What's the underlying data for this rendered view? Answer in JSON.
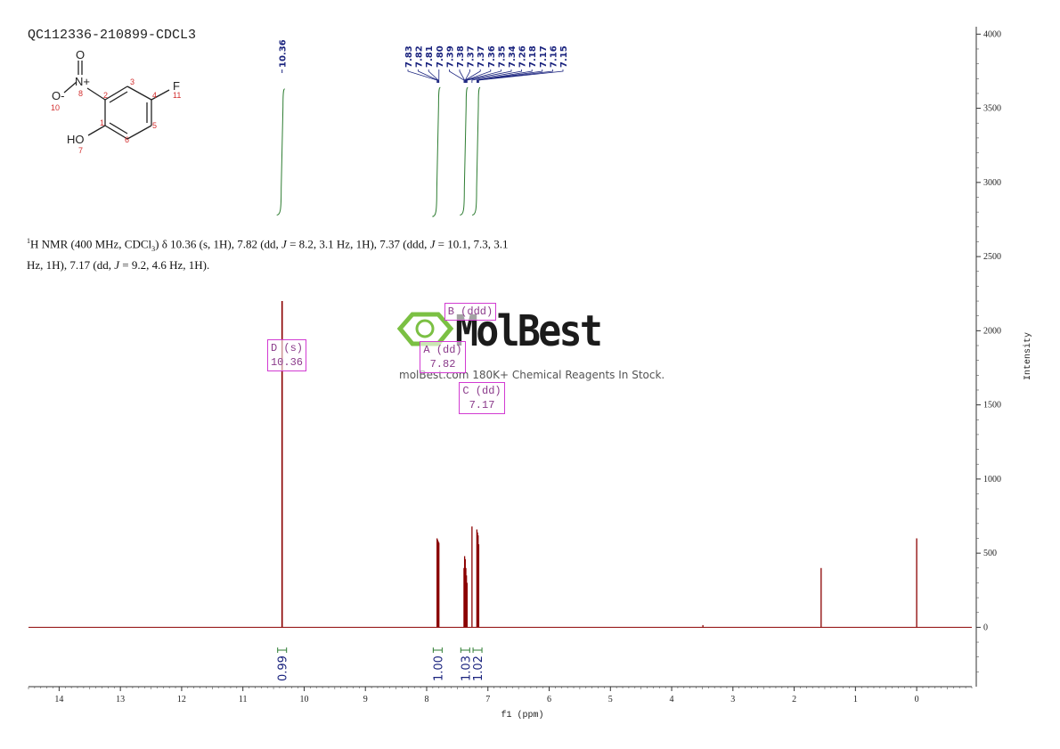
{
  "sample_id": "QC112336-210899-CDCL3",
  "nmr_description": {
    "nucleus_prefix": "1",
    "part1": "H NMR (400 MHz, CDCl",
    "sub": "3",
    "part2": ") δ 10.36 (s, 1H), 7.82 (dd, ",
    "j1": "J",
    "part3": " = 8.2, 3.1 Hz, 1H), 7.37 (ddd, ",
    "j2": "J",
    "part4": " = 10.1, 7.3, 3.1",
    "line2a": "Hz, 1H), 7.17 (dd, ",
    "j3": "J",
    "line2b": " = 9.2, 4.6 Hz, 1H)."
  },
  "watermark": {
    "title": "MolBest",
    "subtitle": "molBest.com 180K+ Chemical Reagents In Stock."
  },
  "molecule": {
    "atoms": [
      "O",
      "N+",
      "O-",
      "F",
      "HO"
    ],
    "numbers": [
      "1",
      "2",
      "3",
      "4",
      "5",
      "6",
      "7",
      "8",
      "10",
      "11"
    ]
  },
  "peak_boxes": [
    {
      "label": "D (s)",
      "value": "10.36"
    },
    {
      "label": "A (dd)",
      "value": "7.82"
    },
    {
      "label": "B (ddd)",
      "value": ""
    },
    {
      "label": "C (dd)",
      "value": "7.17"
    }
  ],
  "colors": {
    "spectrum": "#8b0000",
    "integral": "#2e7d32",
    "peak_label": "#1a237e",
    "box": "#d23bd2",
    "atom_number": "#d32f2f"
  },
  "chart_data": {
    "type": "line",
    "xlabel": "f1 (ppm)",
    "ylabel": "Intensity",
    "xlim": [
      14.5,
      -0.9
    ],
    "ylim": [
      -400,
      4050
    ],
    "x_ticks": [
      "14",
      "13",
      "12",
      "11",
      "10",
      "9",
      "8",
      "7",
      "6",
      "5",
      "4",
      "3",
      "2",
      "1",
      "0"
    ],
    "y_ticks": [
      "0",
      "500",
      "1000",
      "1500",
      "2000",
      "2500",
      "3000",
      "3500",
      "4000"
    ],
    "peak_labels": [
      "10.36",
      "7.83",
      "7.82",
      "7.81",
      "7.80",
      "7.39",
      "7.38",
      "7.37",
      "7.37",
      "7.36",
      "7.35",
      "7.34",
      "7.26",
      "7.18",
      "7.17",
      "7.16",
      "7.15"
    ],
    "peaks": [
      {
        "ppm": 10.36,
        "height": 2200
      },
      {
        "ppm": 7.83,
        "height": 600
      },
      {
        "ppm": 7.82,
        "height": 590
      },
      {
        "ppm": 7.81,
        "height": 580
      },
      {
        "ppm": 7.8,
        "height": 570
      },
      {
        "ppm": 7.39,
        "height": 400
      },
      {
        "ppm": 7.38,
        "height": 480
      },
      {
        "ppm": 7.37,
        "height": 460
      },
      {
        "ppm": 7.36,
        "height": 400
      },
      {
        "ppm": 7.35,
        "height": 350
      },
      {
        "ppm": 7.34,
        "height": 300
      },
      {
        "ppm": 7.26,
        "height": 680
      },
      {
        "ppm": 7.18,
        "height": 660
      },
      {
        "ppm": 7.17,
        "height": 640
      },
      {
        "ppm": 7.16,
        "height": 620
      },
      {
        "ppm": 7.15,
        "height": 560
      },
      {
        "ppm": 3.49,
        "height": 15
      },
      {
        "ppm": 1.56,
        "height": 400
      },
      {
        "ppm": 0.0,
        "height": 600
      }
    ],
    "integrals": [
      {
        "ppm": 10.36,
        "value": "0.99"
      },
      {
        "ppm": 7.82,
        "value": "1.00"
      },
      {
        "ppm": 7.37,
        "value": "1.03"
      },
      {
        "ppm": 7.17,
        "value": "1.02"
      }
    ]
  }
}
